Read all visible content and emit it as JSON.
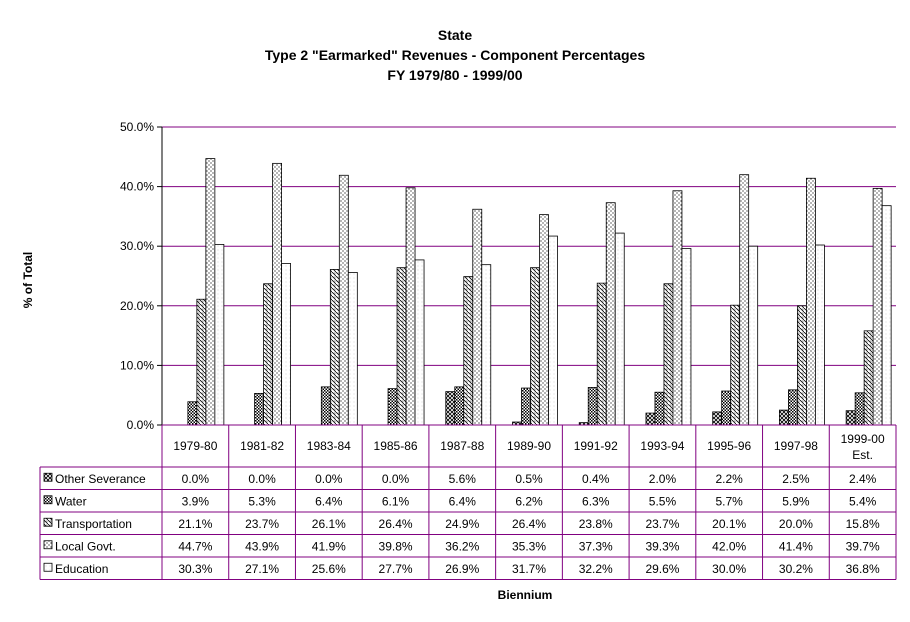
{
  "chart_data": {
    "type": "bar",
    "title": "State",
    "subtitle": "Type 2 \"Earmarked\"  Revenues - Component Percentages",
    "subtitle2": "FY 1979/80 - 1999/00",
    "xlabel": "Biennium",
    "ylabel": "% of Total",
    "ylim": [
      0,
      50
    ],
    "yticks": [
      "0.0%",
      "10.0%",
      "20.0%",
      "30.0%",
      "40.0%",
      "50.0%"
    ],
    "grid": true,
    "legend": "data-table",
    "categories": [
      "1979-80",
      "1981-82",
      "1983-84",
      "1985-86",
      "1987-88",
      "1989-90",
      "1991-92",
      "1993-94",
      "1995-96",
      "1997-98",
      "1999-00 Est."
    ],
    "series": [
      {
        "name": "Other Severance",
        "values": [
          0.0,
          0.0,
          0.0,
          0.0,
          5.6,
          0.5,
          0.4,
          2.0,
          2.2,
          2.5,
          2.4
        ],
        "labels": [
          "0.0%",
          "0.0%",
          "0.0%",
          "0.0%",
          "5.6%",
          "0.5%",
          "0.4%",
          "2.0%",
          "2.2%",
          "2.5%",
          "2.4%"
        ]
      },
      {
        "name": "Water",
        "values": [
          3.9,
          5.3,
          6.4,
          6.1,
          6.4,
          6.2,
          6.3,
          5.5,
          5.7,
          5.9,
          5.4
        ],
        "labels": [
          "3.9%",
          "5.3%",
          "6.4%",
          "6.1%",
          "6.4%",
          "6.2%",
          "6.3%",
          "5.5%",
          "5.7%",
          "5.9%",
          "5.4%"
        ]
      },
      {
        "name": "Transportation",
        "values": [
          21.1,
          23.7,
          26.1,
          26.4,
          24.9,
          26.4,
          23.8,
          23.7,
          20.1,
          20.0,
          15.8
        ],
        "labels": [
          "21.1%",
          "23.7%",
          "26.1%",
          "26.4%",
          "24.9%",
          "26.4%",
          "23.8%",
          "23.7%",
          "20.1%",
          "20.0%",
          "15.8%"
        ]
      },
      {
        "name": "Local Govt.",
        "values": [
          44.7,
          43.9,
          41.9,
          39.8,
          36.2,
          35.3,
          37.3,
          39.3,
          42.0,
          41.4,
          39.7
        ],
        "labels": [
          "44.7%",
          "43.9%",
          "41.9%",
          "39.8%",
          "36.2%",
          "35.3%",
          "37.3%",
          "39.3%",
          "42.0%",
          "41.4%",
          "39.7%"
        ]
      },
      {
        "name": "Education",
        "values": [
          30.3,
          27.1,
          25.6,
          27.7,
          26.9,
          31.7,
          32.2,
          29.6,
          30.0,
          30.2,
          36.8
        ],
        "labels": [
          "30.3%",
          "27.1%",
          "25.6%",
          "27.7%",
          "26.9%",
          "31.7%",
          "32.2%",
          "29.6%",
          "30.0%",
          "30.2%",
          "36.8%"
        ]
      }
    ],
    "colors": {
      "gridline": "#800080",
      "frame": "#800080",
      "bar_stroke": "#000000"
    }
  }
}
